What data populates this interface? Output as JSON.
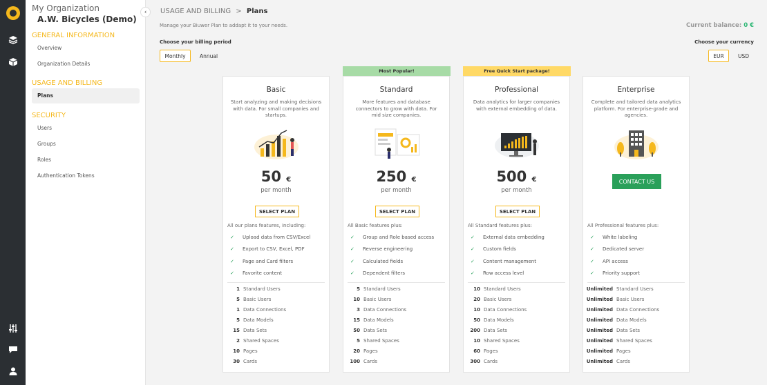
{
  "sidebar": {
    "org_label": "My Organization",
    "org_name": "A.W. Bicycles (Demo)",
    "sections": [
      {
        "title": "GENERAL INFORMATION",
        "items": [
          "Overview",
          "Organization Details"
        ]
      },
      {
        "title": "USAGE AND BILLING",
        "items": [
          "Plans"
        ]
      },
      {
        "title": "SECURITY",
        "items": [
          "Users",
          "Groups",
          "Roles",
          "Authentication Tokens"
        ]
      }
    ]
  },
  "header": {
    "breadcrumb_parent": "USAGE AND BILLING",
    "breadcrumb_sep": ">",
    "breadcrumb_current": "Plans",
    "subtitle": "Manage your Biuwer Plan to addapt it to your needs.",
    "balance_label": "Current balance:",
    "balance_value": "0 €"
  },
  "billing": {
    "label": "Choose your billing period",
    "monthly": "Monthly",
    "annual": "Annual"
  },
  "currency": {
    "label": "Choose your currency",
    "eur": "EUR",
    "usd": "USD"
  },
  "banners": {
    "standard": "Most Popular!",
    "professional": "Free Quick Start package!"
  },
  "colors": {
    "accent": "#f5b81c",
    "banner_green": "#a7dba6",
    "banner_yellow": "#ffd966",
    "contact_green": "#2aa05a",
    "rail": "#2b2f33"
  },
  "plans": [
    {
      "title": "Basic",
      "desc": "Start analyzing and making decisions with data. For small companies and startups.",
      "price": "50",
      "currency": "€",
      "per": "per month",
      "button": "SELECT PLAN",
      "features_intro": "All our plans features, including:",
      "features": [
        "Upload data from CSV/Excel",
        "Export to CSV, Excel, PDF",
        "Page and Card filters",
        "Favorite content"
      ],
      "limits": [
        [
          "1",
          "Standard Users"
        ],
        [
          "5",
          "Basic Users"
        ],
        [
          "1",
          "Data Connections"
        ],
        [
          "5",
          "Data Models"
        ],
        [
          "15",
          "Data Sets"
        ],
        [
          "2",
          "Shared Spaces"
        ],
        [
          "10",
          "Pages"
        ],
        [
          "30",
          "Cards"
        ]
      ]
    },
    {
      "title": "Standard",
      "desc": "More features and database connectors to grow with data. For mid size companies.",
      "price": "250",
      "currency": "€",
      "per": "per month",
      "button": "SELECT PLAN",
      "features_intro": "All Basic features plus:",
      "features": [
        "Group and Role based access",
        "Reverse engineering",
        "Calculated fields",
        "Dependent filters"
      ],
      "limits": [
        [
          "5",
          "Standard Users"
        ],
        [
          "10",
          "Basic Users"
        ],
        [
          "3",
          "Data Connections"
        ],
        [
          "15",
          "Data Models"
        ],
        [
          "50",
          "Data Sets"
        ],
        [
          "5",
          "Shared Spaces"
        ],
        [
          "20",
          "Pages"
        ],
        [
          "100",
          "Cards"
        ]
      ]
    },
    {
      "title": "Professional",
      "desc": "Data analytics for larger companies with external embedding of data.",
      "price": "500",
      "currency": "€",
      "per": "per month",
      "button": "SELECT PLAN",
      "features_intro": "All Standard features plus:",
      "features": [
        "External data embedding",
        "Custom fields",
        "Content management",
        "Row access level"
      ],
      "limits": [
        [
          "10",
          "Standard Users"
        ],
        [
          "20",
          "Basic Users"
        ],
        [
          "10",
          "Data Connections"
        ],
        [
          "50",
          "Data Models"
        ],
        [
          "200",
          "Data Sets"
        ],
        [
          "10",
          "Shared Spaces"
        ],
        [
          "60",
          "Pages"
        ],
        [
          "300",
          "Cards"
        ]
      ]
    },
    {
      "title": "Enterprise",
      "desc": "Complete and tailored data analytics platform. For enterprise-grade and agencies.",
      "button": "CONTACT US",
      "features_intro": "All Professional features plus:",
      "features": [
        "White labeling",
        "Dedicated server",
        "API access",
        "Priority support"
      ],
      "limits": [
        [
          "Unlimited",
          "Standard Users"
        ],
        [
          "Unlimited",
          "Basic Users"
        ],
        [
          "Unlimited",
          "Data Connections"
        ],
        [
          "Unlimited",
          "Data Models"
        ],
        [
          "Unlimited",
          "Data Sets"
        ],
        [
          "Unlimited",
          "Shared Spaces"
        ],
        [
          "Unlimited",
          "Pages"
        ],
        [
          "Unlimited",
          "Cards"
        ]
      ]
    }
  ],
  "icons": {
    "rail": [
      "logo-icon",
      "layers-icon",
      "cube-icon",
      "sliders-icon",
      "chat-icon",
      "user-icon"
    ],
    "check": "✓",
    "collapse": "‹"
  }
}
